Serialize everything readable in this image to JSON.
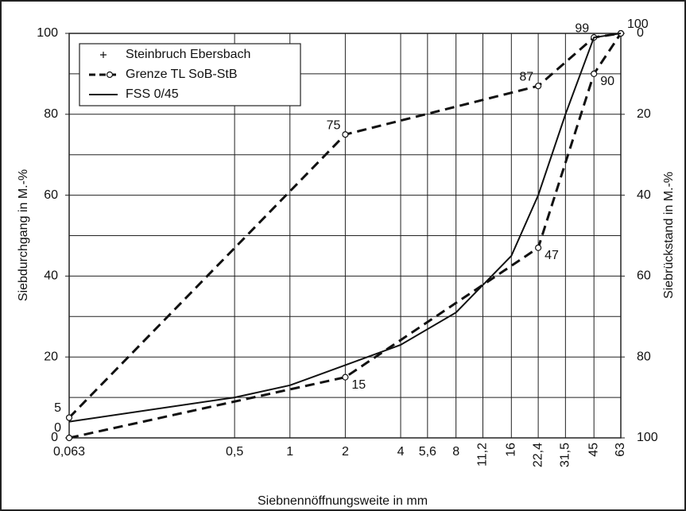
{
  "chart_data": {
    "type": "line",
    "xlabel": "Siebnennöffnungsweite in mm",
    "ylabel": "Siebdurchgang  in M.-%",
    "y2label": "Siebrückstand  in M.-%",
    "xscale": "log",
    "xlim": [
      0.063,
      63
    ],
    "xticks": [
      {
        "value": 0.063,
        "label": "0,063"
      },
      {
        "value": 0.5,
        "label": "0,5"
      },
      1,
      2,
      4,
      {
        "value": 5.6,
        "label": "5,6"
      },
      8,
      {
        "value": 11.2,
        "label": "11,2"
      },
      16,
      {
        "value": 22.4,
        "label": "22,4"
      },
      {
        "value": 31.5,
        "label": "31,5"
      },
      45,
      63
    ],
    "ylim": [
      0,
      100
    ],
    "yticks": [
      0,
      20,
      40,
      60,
      80,
      100
    ],
    "ygrid": [
      0,
      10,
      20,
      30,
      40,
      50,
      60,
      70,
      80,
      90,
      100
    ],
    "y2lim": [
      100,
      0
    ],
    "y2ticks": [
      0,
      20,
      40,
      60,
      80,
      100
    ],
    "grid": true,
    "legend": "upper left",
    "series": [
      {
        "name": "Grenze TL SoB-StB",
        "color": "#111111",
        "style": "dashed",
        "marker": "circle",
        "x": [
          0.063,
          2,
          22.4,
          45,
          63
        ],
        "values": [
          5,
          75,
          87,
          99,
          100
        ]
      },
      {
        "color": "#111111",
        "style": "dashed",
        "marker": "circle",
        "x": [
          0.063,
          2,
          22.4,
          45,
          63
        ],
        "values": [
          0,
          15,
          47,
          90,
          100
        ]
      },
      {
        "name": "Steinbruch Ebersbach",
        "color": "#111111",
        "style": "none",
        "marker": "plus",
        "x": [],
        "values": []
      },
      {
        "name": "FSS 0/45",
        "color": "#111111",
        "style": "solid",
        "marker": "none",
        "x": [
          0.063,
          0.5,
          1,
          2,
          4,
          8,
          16,
          22.4,
          31.5,
          45,
          63
        ],
        "values": [
          4,
          10,
          13,
          18,
          23,
          31,
          45,
          60,
          80,
          99,
          100
        ]
      }
    ]
  }
}
